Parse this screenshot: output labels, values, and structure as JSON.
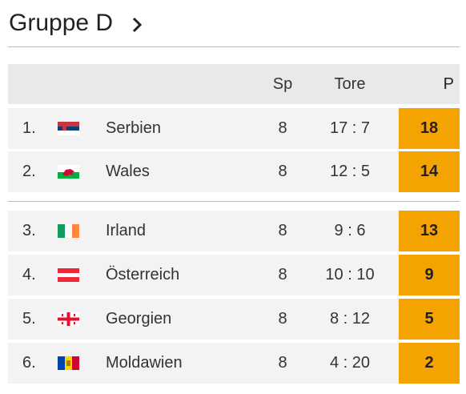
{
  "header": {
    "title": "Gruppe D"
  },
  "table": {
    "columns": [
      "Sp",
      "Tore",
      "P"
    ],
    "rows": [
      {
        "rank": "1.",
        "team": "Serbien",
        "played": 8,
        "goals": "17 : 7",
        "points": 18
      },
      {
        "rank": "2.",
        "team": "Wales",
        "played": 8,
        "goals": "12 : 5",
        "points": 14
      },
      {
        "rank": "3.",
        "team": "Irland",
        "played": 8,
        "goals": "9 : 6",
        "points": 13
      },
      {
        "rank": "4.",
        "team": "Österreich",
        "played": 8,
        "goals": "10 : 10",
        "points": 9
      },
      {
        "rank": "5.",
        "team": "Georgien",
        "played": 8,
        "goals": "8 : 12",
        "points": 5
      },
      {
        "rank": "6.",
        "team": "Moldawien",
        "played": 8,
        "goals": "4 : 20",
        "points": 2
      }
    ]
  }
}
